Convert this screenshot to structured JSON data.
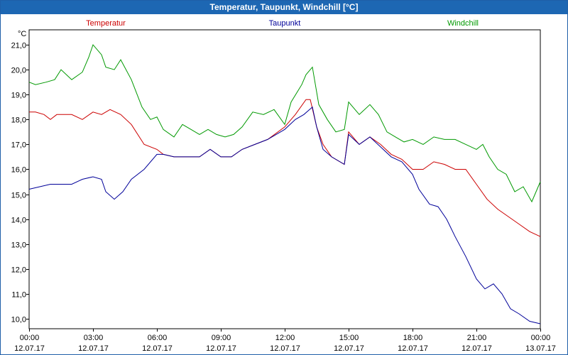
{
  "window": {
    "title": "Temperatur, Taupunkt, Windchill [°C]"
  },
  "chart_data": {
    "type": "line",
    "title": "Temperatur, Taupunkt, Windchill [°C]",
    "ylabel": "°C",
    "ylim": [
      9.6,
      21.6
    ],
    "xlim": [
      0,
      24
    ],
    "grid": true,
    "legend_position": "top",
    "y_ticks": [
      "10,0",
      "11,0",
      "12,0",
      "13,0",
      "14,0",
      "15,0",
      "16,0",
      "17,0",
      "18,0",
      "19,0",
      "20,0",
      "21,0"
    ],
    "y_tick_values": [
      10,
      11,
      12,
      13,
      14,
      15,
      16,
      17,
      18,
      19,
      20,
      21
    ],
    "x_tick_values": [
      0,
      3,
      6,
      9,
      12,
      15,
      18,
      21,
      24
    ],
    "x_tick_times": [
      "00:00",
      "03:00",
      "06:00",
      "09:00",
      "12:00",
      "15:00",
      "18:00",
      "21:00",
      "00:00"
    ],
    "x_tick_dates": [
      "12.07.17",
      "12.07.17",
      "12.07.17",
      "12.07.17",
      "12.07.17",
      "12.07.17",
      "12.07.17",
      "12.07.17",
      "13.07.17"
    ],
    "series": [
      {
        "name": "Temperatur",
        "color": "#cc0000",
        "points": [
          [
            0,
            18.3
          ],
          [
            0.3,
            18.3
          ],
          [
            0.7,
            18.2
          ],
          [
            1.0,
            18.0
          ],
          [
            1.3,
            18.2
          ],
          [
            2.0,
            18.2
          ],
          [
            2.5,
            18.0
          ],
          [
            3.0,
            18.3
          ],
          [
            3.4,
            18.2
          ],
          [
            3.8,
            18.4
          ],
          [
            4.3,
            18.2
          ],
          [
            4.8,
            17.8
          ],
          [
            5.4,
            17.0
          ],
          [
            6.0,
            16.8
          ],
          [
            6.3,
            16.6
          ],
          [
            6.8,
            16.5
          ],
          [
            7.4,
            16.5
          ],
          [
            8.0,
            16.5
          ],
          [
            8.5,
            16.8
          ],
          [
            9.0,
            16.5
          ],
          [
            9.5,
            16.5
          ],
          [
            10.0,
            16.8
          ],
          [
            10.6,
            17.0
          ],
          [
            11.2,
            17.2
          ],
          [
            12.0,
            17.7
          ],
          [
            12.5,
            18.2
          ],
          [
            13.0,
            18.8
          ],
          [
            13.2,
            18.8
          ],
          [
            13.5,
            17.7
          ],
          [
            13.8,
            17.0
          ],
          [
            14.2,
            16.5
          ],
          [
            14.8,
            16.2
          ],
          [
            15.0,
            17.5
          ],
          [
            15.5,
            17.0
          ],
          [
            16.0,
            17.3
          ],
          [
            16.5,
            17.0
          ],
          [
            17.0,
            16.6
          ],
          [
            17.5,
            16.4
          ],
          [
            18.0,
            16.0
          ],
          [
            18.5,
            16.0
          ],
          [
            19.0,
            16.3
          ],
          [
            19.5,
            16.2
          ],
          [
            20.0,
            16.0
          ],
          [
            20.5,
            16.0
          ],
          [
            21.0,
            15.4
          ],
          [
            21.5,
            14.8
          ],
          [
            22.0,
            14.4
          ],
          [
            22.5,
            14.1
          ],
          [
            23.0,
            13.8
          ],
          [
            23.5,
            13.5
          ],
          [
            24.0,
            13.3
          ]
        ]
      },
      {
        "name": "Taupunkt",
        "color": "#000099",
        "points": [
          [
            0,
            15.2
          ],
          [
            0.5,
            15.3
          ],
          [
            1.0,
            15.4
          ],
          [
            1.5,
            15.4
          ],
          [
            2.0,
            15.4
          ],
          [
            2.5,
            15.6
          ],
          [
            3.0,
            15.7
          ],
          [
            3.4,
            15.6
          ],
          [
            3.6,
            15.1
          ],
          [
            4.0,
            14.8
          ],
          [
            4.4,
            15.1
          ],
          [
            4.8,
            15.6
          ],
          [
            5.4,
            16.0
          ],
          [
            6.0,
            16.6
          ],
          [
            6.3,
            16.6
          ],
          [
            6.8,
            16.5
          ],
          [
            7.4,
            16.5
          ],
          [
            8.0,
            16.5
          ],
          [
            8.5,
            16.8
          ],
          [
            9.0,
            16.5
          ],
          [
            9.5,
            16.5
          ],
          [
            10.0,
            16.8
          ],
          [
            10.6,
            17.0
          ],
          [
            11.2,
            17.2
          ],
          [
            12.0,
            17.6
          ],
          [
            12.5,
            18.0
          ],
          [
            12.9,
            18.2
          ],
          [
            13.3,
            18.5
          ],
          [
            13.5,
            17.7
          ],
          [
            13.8,
            16.8
          ],
          [
            14.2,
            16.5
          ],
          [
            14.8,
            16.2
          ],
          [
            15.0,
            17.4
          ],
          [
            15.5,
            17.0
          ],
          [
            16.0,
            17.3
          ],
          [
            16.5,
            16.9
          ],
          [
            17.0,
            16.5
          ],
          [
            17.5,
            16.3
          ],
          [
            18.0,
            15.8
          ],
          [
            18.3,
            15.2
          ],
          [
            18.8,
            14.6
          ],
          [
            19.2,
            14.5
          ],
          [
            19.6,
            14.0
          ],
          [
            20.0,
            13.3
          ],
          [
            20.5,
            12.5
          ],
          [
            21.0,
            11.6
          ],
          [
            21.4,
            11.2
          ],
          [
            21.8,
            11.4
          ],
          [
            22.2,
            11.0
          ],
          [
            22.6,
            10.4
          ],
          [
            23.0,
            10.2
          ],
          [
            23.5,
            9.9
          ],
          [
            24.0,
            9.8
          ]
        ]
      },
      {
        "name": "Windchill",
        "color": "#009900",
        "points": [
          [
            0,
            19.5
          ],
          [
            0.3,
            19.4
          ],
          [
            0.8,
            19.5
          ],
          [
            1.2,
            19.6
          ],
          [
            1.5,
            20.0
          ],
          [
            2.0,
            19.6
          ],
          [
            2.5,
            19.9
          ],
          [
            2.8,
            20.5
          ],
          [
            3.0,
            21.0
          ],
          [
            3.4,
            20.6
          ],
          [
            3.6,
            20.1
          ],
          [
            4.0,
            20.0
          ],
          [
            4.3,
            20.4
          ],
          [
            4.8,
            19.6
          ],
          [
            5.3,
            18.5
          ],
          [
            5.7,
            18.0
          ],
          [
            6.0,
            18.1
          ],
          [
            6.3,
            17.6
          ],
          [
            6.8,
            17.3
          ],
          [
            7.2,
            17.8
          ],
          [
            7.6,
            17.6
          ],
          [
            8.0,
            17.4
          ],
          [
            8.4,
            17.6
          ],
          [
            8.8,
            17.4
          ],
          [
            9.2,
            17.3
          ],
          [
            9.6,
            17.4
          ],
          [
            10.0,
            17.7
          ],
          [
            10.5,
            18.3
          ],
          [
            11.0,
            18.2
          ],
          [
            11.5,
            18.4
          ],
          [
            12.0,
            17.8
          ],
          [
            12.3,
            18.7
          ],
          [
            12.8,
            19.4
          ],
          [
            13.0,
            19.8
          ],
          [
            13.3,
            20.1
          ],
          [
            13.6,
            18.6
          ],
          [
            14.0,
            18.0
          ],
          [
            14.4,
            17.5
          ],
          [
            14.8,
            17.6
          ],
          [
            15.0,
            18.7
          ],
          [
            15.5,
            18.2
          ],
          [
            16.0,
            18.6
          ],
          [
            16.4,
            18.2
          ],
          [
            16.8,
            17.5
          ],
          [
            17.2,
            17.3
          ],
          [
            17.6,
            17.1
          ],
          [
            18.0,
            17.2
          ],
          [
            18.5,
            17.0
          ],
          [
            19.0,
            17.3
          ],
          [
            19.5,
            17.2
          ],
          [
            20.0,
            17.2
          ],
          [
            20.5,
            17.0
          ],
          [
            21.0,
            16.8
          ],
          [
            21.3,
            17.0
          ],
          [
            21.6,
            16.5
          ],
          [
            22.0,
            16.0
          ],
          [
            22.4,
            15.8
          ],
          [
            22.8,
            15.1
          ],
          [
            23.2,
            15.3
          ],
          [
            23.6,
            14.7
          ],
          [
            24.0,
            15.5
          ]
        ]
      }
    ]
  }
}
